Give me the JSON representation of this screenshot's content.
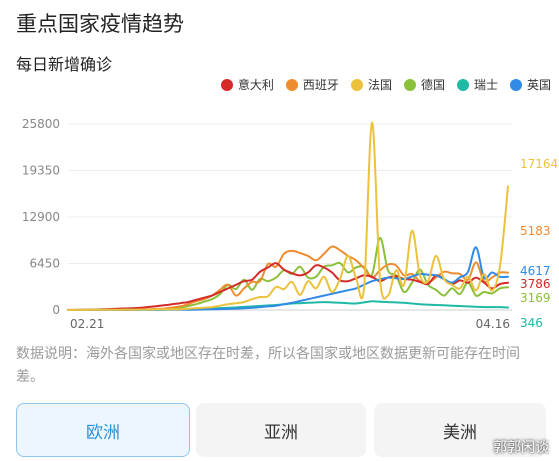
{
  "header": {
    "title": "重点国家疫情趋势",
    "subtitle": "每日新增确诊"
  },
  "tabs": [
    {
      "label": "欧洲",
      "active": true
    },
    {
      "label": "亚洲",
      "active": false
    },
    {
      "label": "美洲",
      "active": false
    }
  ],
  "note": "数据说明：海外各国家或地区存在时差，所以各国家或地区数据更新可能存在时间差。",
  "watermark": "郭郭闲谈",
  "chart_data": {
    "type": "line",
    "yticks": [
      0,
      6450,
      12900,
      19350,
      25800
    ],
    "ylim": [
      0,
      25800
    ],
    "x_start_label": "02.21",
    "x_end_label": "04.16",
    "n_points": 56,
    "legend_position": "top-right",
    "grid": true,
    "series": [
      {
        "name": "意大利",
        "color": "#d42a2a",
        "end_label": "3786",
        "keys": [
          [
            0,
            10
          ],
          [
            3,
            40
          ],
          [
            6,
            160
          ],
          [
            9,
            300
          ],
          [
            12,
            650
          ],
          [
            15,
            1100
          ],
          [
            18,
            2000
          ],
          [
            19,
            2500
          ],
          [
            20,
            3000
          ],
          [
            21,
            3500
          ],
          [
            22,
            4000
          ],
          [
            23,
            4200
          ],
          [
            24,
            5300
          ],
          [
            25,
            5900
          ],
          [
            26,
            6500
          ],
          [
            27,
            5600
          ],
          [
            28,
            5100
          ],
          [
            29,
            4800
          ],
          [
            30,
            5200
          ],
          [
            31,
            6200
          ],
          [
            32,
            5900
          ],
          [
            33,
            5200
          ],
          [
            34,
            4100
          ],
          [
            35,
            4000
          ],
          [
            36,
            4400
          ],
          [
            37,
            4800
          ],
          [
            38,
            4600
          ],
          [
            39,
            4000
          ],
          [
            40,
            4500
          ],
          [
            41,
            4700
          ],
          [
            42,
            4300
          ],
          [
            43,
            4200
          ],
          [
            44,
            3900
          ],
          [
            45,
            3600
          ],
          [
            46,
            4800
          ],
          [
            47,
            4300
          ],
          [
            48,
            3600
          ],
          [
            49,
            4100
          ],
          [
            50,
            3800
          ],
          [
            51,
            4500
          ],
          [
            52,
            3800
          ],
          [
            53,
            3000
          ],
          [
            54,
            3600
          ],
          [
            55,
            3786
          ]
        ]
      },
      {
        "name": "西班牙",
        "color": "#f08c30",
        "end_label": "5183",
        "keys": [
          [
            0,
            0
          ],
          [
            8,
            20
          ],
          [
            12,
            200
          ],
          [
            14,
            500
          ],
          [
            15,
            800
          ],
          [
            16,
            1200
          ],
          [
            17,
            1500
          ],
          [
            18,
            2000
          ],
          [
            19,
            2800
          ],
          [
            20,
            3500
          ],
          [
            21,
            2000
          ],
          [
            22,
            3000
          ],
          [
            23,
            3900
          ],
          [
            24,
            4000
          ],
          [
            25,
            6400
          ],
          [
            26,
            6000
          ],
          [
            27,
            7800
          ],
          [
            28,
            8200
          ],
          [
            29,
            7900
          ],
          [
            30,
            7500
          ],
          [
            31,
            6900
          ],
          [
            32,
            7800
          ],
          [
            33,
            8800
          ],
          [
            34,
            8300
          ],
          [
            35,
            7500
          ],
          [
            36,
            6900
          ],
          [
            37,
            5800
          ],
          [
            38,
            4500
          ],
          [
            39,
            5500
          ],
          [
            40,
            6300
          ],
          [
            41,
            6200
          ],
          [
            42,
            4800
          ],
          [
            43,
            5000
          ],
          [
            44,
            4000
          ],
          [
            45,
            3800
          ],
          [
            46,
            4500
          ],
          [
            47,
            5300
          ],
          [
            48,
            5100
          ],
          [
            49,
            5000
          ],
          [
            50,
            4200
          ],
          [
            51,
            6600
          ],
          [
            52,
            4000
          ],
          [
            53,
            4500
          ],
          [
            54,
            5200
          ],
          [
            55,
            5183
          ]
        ]
      },
      {
        "name": "法国",
        "color": "#ecc23c",
        "end_label": "17164",
        "keys": [
          [
            0,
            0
          ],
          [
            14,
            100
          ],
          [
            18,
            400
          ],
          [
            20,
            800
          ],
          [
            22,
            1100
          ],
          [
            23,
            1500
          ],
          [
            24,
            1800
          ],
          [
            25,
            1900
          ],
          [
            26,
            3200
          ],
          [
            27,
            2900
          ],
          [
            28,
            3900
          ],
          [
            29,
            2100
          ],
          [
            30,
            4000
          ],
          [
            31,
            3000
          ],
          [
            32,
            4600
          ],
          [
            33,
            2500
          ],
          [
            34,
            4300
          ],
          [
            35,
            7500
          ],
          [
            36,
            4500
          ],
          [
            37,
            3000
          ],
          [
            38,
            26000
          ],
          [
            39,
            4300
          ],
          [
            40,
            2000
          ],
          [
            41,
            5500
          ],
          [
            42,
            3500
          ],
          [
            43,
            11000
          ],
          [
            44,
            4800
          ],
          [
            45,
            4000
          ],
          [
            46,
            7500
          ],
          [
            47,
            4300
          ],
          [
            48,
            3500
          ],
          [
            49,
            3000
          ],
          [
            50,
            4600
          ],
          [
            51,
            2700
          ],
          [
            52,
            5000
          ],
          [
            53,
            2700
          ],
          [
            54,
            6100
          ],
          [
            55,
            17164
          ]
        ]
      },
      {
        "name": "德国",
        "color": "#8bc03a",
        "end_label": "3169",
        "keys": [
          [
            0,
            0
          ],
          [
            12,
            100
          ],
          [
            14,
            300
          ],
          [
            16,
            800
          ],
          [
            18,
            1500
          ],
          [
            19,
            2200
          ],
          [
            20,
            3500
          ],
          [
            21,
            2900
          ],
          [
            22,
            4200
          ],
          [
            23,
            2800
          ],
          [
            24,
            4300
          ],
          [
            25,
            4000
          ],
          [
            26,
            4500
          ],
          [
            27,
            5500
          ],
          [
            28,
            5000
          ],
          [
            29,
            6000
          ],
          [
            30,
            4500
          ],
          [
            31,
            4600
          ],
          [
            32,
            6000
          ],
          [
            33,
            6200
          ],
          [
            34,
            6500
          ],
          [
            35,
            5200
          ],
          [
            36,
            5900
          ],
          [
            37,
            6000
          ],
          [
            38,
            4900
          ],
          [
            39,
            10000
          ],
          [
            40,
            5500
          ],
          [
            41,
            4800
          ],
          [
            42,
            2500
          ],
          [
            43,
            3800
          ],
          [
            44,
            5600
          ],
          [
            45,
            3500
          ],
          [
            46,
            2800
          ],
          [
            47,
            2000
          ],
          [
            48,
            3000
          ],
          [
            49,
            2200
          ],
          [
            50,
            3800
          ],
          [
            51,
            2000
          ],
          [
            52,
            2500
          ],
          [
            53,
            2300
          ],
          [
            54,
            3000
          ],
          [
            55,
            3169
          ]
        ]
      },
      {
        "name": "瑞士",
        "color": "#1fb9a6",
        "end_label": "346",
        "keys": [
          [
            0,
            0
          ],
          [
            12,
            50
          ],
          [
            16,
            150
          ],
          [
            20,
            300
          ],
          [
            23,
            500
          ],
          [
            26,
            700
          ],
          [
            28,
            900
          ],
          [
            30,
            1000
          ],
          [
            32,
            1100
          ],
          [
            34,
            1000
          ],
          [
            36,
            900
          ],
          [
            38,
            1200
          ],
          [
            40,
            1100
          ],
          [
            42,
            1000
          ],
          [
            44,
            800
          ],
          [
            46,
            700
          ],
          [
            48,
            600
          ],
          [
            50,
            500
          ],
          [
            52,
            400
          ],
          [
            54,
            400
          ],
          [
            55,
            346
          ]
        ]
      },
      {
        "name": "英国",
        "color": "#2f8be6",
        "end_label": "4617",
        "keys": [
          [
            0,
            0
          ],
          [
            16,
            50
          ],
          [
            20,
            150
          ],
          [
            23,
            300
          ],
          [
            26,
            600
          ],
          [
            28,
            1000
          ],
          [
            30,
            1500
          ],
          [
            32,
            2000
          ],
          [
            34,
            2500
          ],
          [
            36,
            3000
          ],
          [
            38,
            4000
          ],
          [
            40,
            4500
          ],
          [
            42,
            4300
          ],
          [
            44,
            5000
          ],
          [
            46,
            4800
          ],
          [
            48,
            3800
          ],
          [
            50,
            5300
          ],
          [
            51,
            8700
          ],
          [
            52,
            4500
          ],
          [
            53,
            5200
          ],
          [
            54,
            4600
          ],
          [
            55,
            4617
          ]
        ]
      }
    ]
  }
}
